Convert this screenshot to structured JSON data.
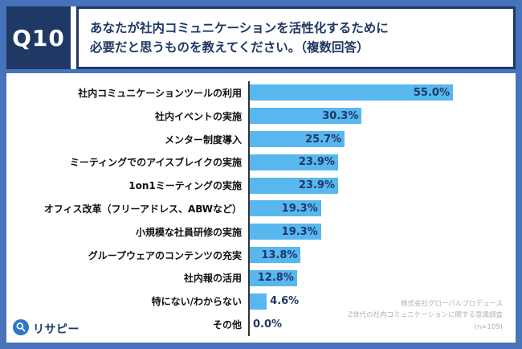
{
  "colors": {
    "frame_blue": "#4673B9",
    "navy": "#1F3864",
    "bar_blue": "#58B7EF",
    "source_gray": "#b2b2b2",
    "logo_blue": "#2E77C8"
  },
  "header": {
    "q_label": "Q10",
    "question": "あなたが社内コミュニケーションを活性化するために\n必要だと思うものを教えてください。（複数回答）"
  },
  "chart_data": {
    "type": "bar",
    "orientation": "horizontal",
    "title": "あなたが社内コミュニケーションを活性化するために必要だと思うものを教えてください。（複数回答）",
    "categories": [
      "社内コミュニケーションツールの利用",
      "社内イベントの実施",
      "メンター制度導入",
      "ミーティングでのアイスブレイクの実施",
      "1on1ミーティングの実施",
      "オフィス改革（フリーアドレス、ABWなど）",
      "小規模な社員研修の実施",
      "グループウェアのコンテンツの充実",
      "社内報の活用",
      "特にない/わからない",
      "その他"
    ],
    "values": [
      55.0,
      30.3,
      25.7,
      23.9,
      23.9,
      19.3,
      19.3,
      13.8,
      12.8,
      4.6,
      0.0
    ],
    "value_labels": [
      "55.0%",
      "30.3%",
      "25.7%",
      "23.9%",
      "23.9%",
      "19.3%",
      "19.3%",
      "13.8%",
      "12.8%",
      "4.6%",
      "0.0%"
    ],
    "xlim": [
      0,
      60
    ],
    "grid": false,
    "legend": false,
    "bar_color": "#58B7EF"
  },
  "footer": {
    "logo_text": "リサピー",
    "source_lines": [
      "株式会社グローバルプロデュース",
      "Z世代の社内コミュニケーションに関する意識調査",
      "(n=109)"
    ]
  }
}
